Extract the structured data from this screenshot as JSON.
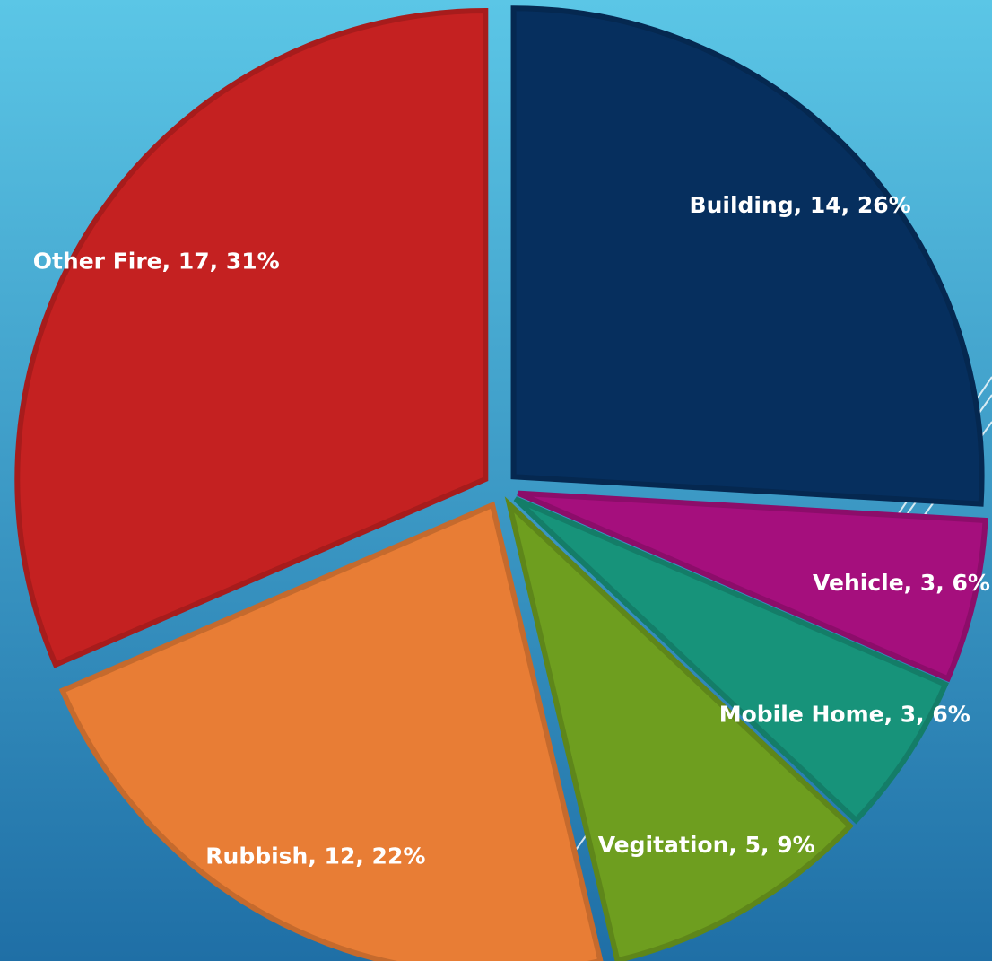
{
  "chart_data": {
    "type": "pie",
    "values": [
      14,
      3,
      3,
      5,
      12,
      17
    ],
    "value_labels": [
      "Building, 14, 26%",
      "Vehicle, 3, 6%",
      "Mobile Home, 3, 6%",
      "Vegitation, 5, 9%",
      "Rubbish, 12, 22%",
      "Other Fire, 17, 31%"
    ],
    "colors": [
      "#062f5e",
      "#a50f7d",
      "#17937a",
      "#6e9e1f",
      "#e87d35",
      "#c42121"
    ],
    "exploded": true
  }
}
